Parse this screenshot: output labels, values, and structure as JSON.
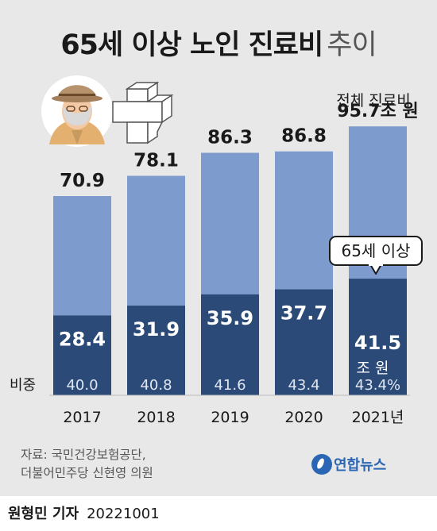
{
  "header": {
    "title_main": "65세 이상 노인 진료비",
    "title_sub": "추이"
  },
  "chart_data": {
    "type": "bar",
    "title": "65세 이상 노인 진료비 추이",
    "categories": [
      "2017",
      "2018",
      "2019",
      "2020",
      "2021년"
    ],
    "series": [
      {
        "name": "전체 진료비",
        "values": [
          70.9,
          78.1,
          86.3,
          86.8,
          95.7
        ]
      },
      {
        "name": "65세 이상",
        "values": [
          28.4,
          31.9,
          35.9,
          37.7,
          41.5
        ]
      }
    ],
    "share_label": "비중",
    "share_values": [
      "40.0",
      "40.8",
      "41.6",
      "43.4",
      "43.4%"
    ],
    "total_labels": [
      "70.9",
      "78.1",
      "86.3",
      "86.8",
      "95.7조 원"
    ],
    "senior_labels": [
      "28.4",
      "31.9",
      "35.9",
      "37.7",
      "41.5"
    ],
    "total_annotation": "전체 진료비",
    "senior_annotation": "65세 이상",
    "senior_unit": "조 원",
    "ylim": [
      0,
      100
    ],
    "colors": {
      "total": "#7d9ccd",
      "senior": "#2b4a78",
      "callout_border": "#1a1a1a"
    }
  },
  "source": {
    "line1": "자료: 국민건강보험공단,",
    "line2": "더불어민주당 신현영 의원"
  },
  "logo": {
    "text": "연합뉴스"
  },
  "byline": {
    "name": "원형민 기자",
    "date": "20221001"
  }
}
